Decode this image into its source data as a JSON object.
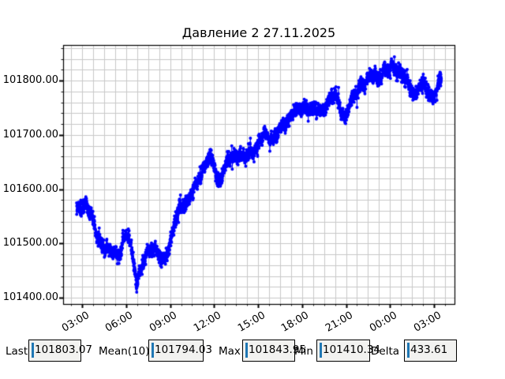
{
  "chart_data": {
    "type": "scatter",
    "title": "Давление 2 27.11.2025",
    "xlabel": "",
    "ylabel": "",
    "grid": true,
    "grid_color": "#c8c8c8",
    "series_color": "#0000ff",
    "xlim_hours": [
      1.7,
      28.4
    ],
    "ylim": [
      101388.66,
      101865.63
    ],
    "x_ticks": [
      {
        "t": 3,
        "label": "03:00"
      },
      {
        "t": 6,
        "label": "06:00"
      },
      {
        "t": 9,
        "label": "09:00"
      },
      {
        "t": 12,
        "label": "12:00"
      },
      {
        "t": 15,
        "label": "15:00"
      },
      {
        "t": 18,
        "label": "18:00"
      },
      {
        "t": 21,
        "label": "21:00"
      },
      {
        "t": 24,
        "label": "00:00"
      },
      {
        "t": 27,
        "label": "03:00"
      }
    ],
    "x_minor_step": 0.75,
    "y_ticks": [
      {
        "v": 101400,
        "label": "101400.00"
      },
      {
        "v": 101500,
        "label": "101500.00"
      },
      {
        "v": 101600,
        "label": "101600.00"
      },
      {
        "v": 101700,
        "label": "101700.00"
      },
      {
        "v": 101800,
        "label": "101800.00"
      }
    ],
    "y_minor_step": 20,
    "series": [
      {
        "name": "Давление 2",
        "t_range": [
          2.62,
          27.5
        ],
        "n_points": 3600,
        "noise_sigma": 6,
        "noise_seed": 20251127,
        "trend": [
          [
            2.62,
            101562
          ],
          [
            2.9,
            101570
          ],
          [
            3.25,
            101572
          ],
          [
            3.6,
            101550
          ],
          [
            3.95,
            101520
          ],
          [
            4.4,
            101497
          ],
          [
            4.8,
            101482
          ],
          [
            5.15,
            101487
          ],
          [
            5.5,
            101482
          ],
          [
            5.9,
            101508
          ],
          [
            6.2,
            101512
          ],
          [
            6.5,
            101472
          ],
          [
            6.72,
            101432
          ],
          [
            6.95,
            101445
          ],
          [
            7.3,
            101473
          ],
          [
            7.7,
            101500
          ],
          [
            8.1,
            101484
          ],
          [
            8.5,
            101462
          ],
          [
            8.9,
            101495
          ],
          [
            9.3,
            101535
          ],
          [
            9.7,
            101566
          ],
          [
            10.1,
            101580
          ],
          [
            10.5,
            101594
          ],
          [
            10.9,
            101612
          ],
          [
            11.3,
            101645
          ],
          [
            11.6,
            101660
          ],
          [
            11.95,
            101648
          ],
          [
            12.3,
            101608
          ],
          [
            12.65,
            101640
          ],
          [
            13.0,
            101652
          ],
          [
            13.4,
            101660
          ],
          [
            13.8,
            101668
          ],
          [
            14.2,
            101655
          ],
          [
            14.6,
            101670
          ],
          [
            15.0,
            101686
          ],
          [
            15.4,
            101698
          ],
          [
            15.8,
            101692
          ],
          [
            16.2,
            101703
          ],
          [
            16.6,
            101710
          ],
          [
            17.0,
            101728
          ],
          [
            17.4,
            101748
          ],
          [
            17.8,
            101742
          ],
          [
            18.2,
            101752
          ],
          [
            18.6,
            101750
          ],
          [
            19.0,
            101740
          ],
          [
            19.4,
            101748
          ],
          [
            19.8,
            101764
          ],
          [
            20.2,
            101772
          ],
          [
            20.55,
            101756
          ],
          [
            20.9,
            101732
          ],
          [
            21.2,
            101750
          ],
          [
            21.5,
            101766
          ],
          [
            21.8,
            101786
          ],
          [
            22.1,
            101798
          ],
          [
            22.4,
            101794
          ],
          [
            22.7,
            101806
          ],
          [
            23.0,
            101812
          ],
          [
            23.3,
            101806
          ],
          [
            23.6,
            101820
          ],
          [
            23.9,
            101816
          ],
          [
            24.2,
            101832
          ],
          [
            24.5,
            101820
          ],
          [
            24.8,
            101810
          ],
          [
            25.1,
            101798
          ],
          [
            25.4,
            101788
          ],
          [
            25.7,
            101774
          ],
          [
            26.0,
            101786
          ],
          [
            26.3,
            101792
          ],
          [
            26.6,
            101782
          ],
          [
            26.9,
            101770
          ],
          [
            27.2,
            101780
          ],
          [
            27.5,
            101800
          ]
        ]
      }
    ],
    "extremes": {
      "min": 101410.34,
      "min_t": 6.72,
      "max": 101843.95,
      "max_t": 24.3,
      "last": 101803.07
    }
  },
  "stats": [
    {
      "label": "Last",
      "value": "101803.07"
    },
    {
      "label": "Mean(10)",
      "value": "101794.03"
    },
    {
      "label": "Max",
      "value": "101843.95"
    },
    {
      "label": "Min",
      "value": "101410.34"
    },
    {
      "label": "Delta",
      "value": "433.61"
    }
  ],
  "caret_color": "#1f77b4"
}
